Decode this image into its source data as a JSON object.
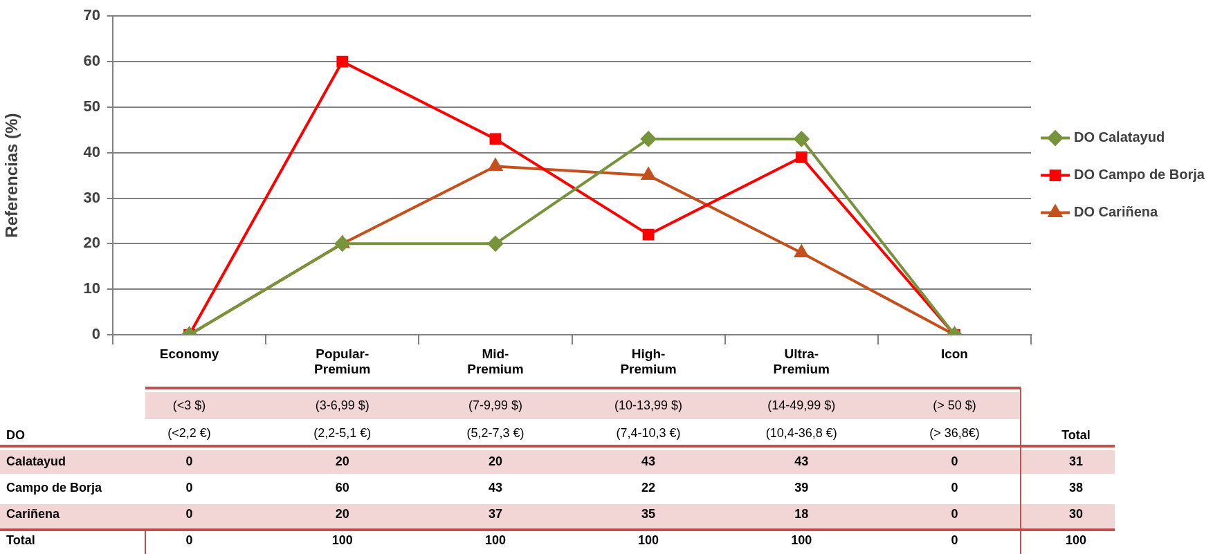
{
  "chart_data": {
    "type": "line",
    "ylabel": "Referencias (%)",
    "categories": [
      "Economy",
      "Popular-Premium",
      "Mid-Premium",
      "High-Premium",
      "Ultra-Premium",
      "Icon"
    ],
    "series": [
      {
        "name": "DO Calatayud",
        "color": "#77933c",
        "marker": "diamond",
        "values": [
          0,
          20,
          20,
          43,
          43,
          0
        ]
      },
      {
        "name": "DO Campo de Borja",
        "color": "#ff0000",
        "marker": "square",
        "values": [
          0,
          60,
          43,
          22,
          39,
          0
        ]
      },
      {
        "name": "DO Cariñena",
        "color": "#c4501c",
        "marker": "triangle",
        "values": [
          0,
          20,
          37,
          35,
          18,
          0
        ]
      }
    ],
    "ylim": [
      0,
      70
    ],
    "yticks": [
      0,
      10,
      20,
      30,
      40,
      50,
      60,
      70
    ],
    "grid": "y",
    "legend": "right",
    "line_style": "solid",
    "data_labels": true,
    "totals": [
      "0",
      "100",
      "100",
      "100",
      "100",
      "0"
    ],
    "annotations": [
      "DO",
      "Total",
      "(<3 $)",
      "(3-6,99 $)",
      "(7-9,99 $)",
      "(10-13,99 $)",
      "(14-49,99 $)",
      "(> 50 $)",
      "(<2,2 €)",
      "(2,2-5,1 €)",
      "(5,2-7,3 €)",
      "(7,4-10,3 €)",
      "(10,4-36,8 €)",
      "(> 36,8€)",
      "Calatayud",
      "Campo de Borja",
      "Cariñena",
      "31",
      "38",
      "30",
      "Total",
      "100"
    ]
  }
}
